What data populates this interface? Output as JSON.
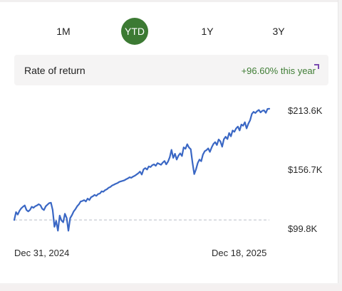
{
  "tabs": [
    {
      "label": "1M",
      "active": false
    },
    {
      "label": "YTD",
      "active": true
    },
    {
      "label": "1Y",
      "active": false
    },
    {
      "label": "3Y",
      "active": false
    }
  ],
  "rate_of_return": {
    "label": "Rate of return",
    "value": "+96.60% this year"
  },
  "colors": {
    "accent_green": "#3c7a33",
    "line": "#3a67c4",
    "baseline": "#b9bec8"
  },
  "chart_data": {
    "type": "line",
    "y_tick_labels": [
      "$213.6K",
      "$156.7K",
      "$99.8K"
    ],
    "y_ticks": [
      213600,
      156700,
      99800
    ],
    "x_tick_labels": [
      "Dec 31, 2024",
      "Dec 18, 2025"
    ],
    "ylim": [
      94000,
      222000
    ],
    "baseline": 108600,
    "series": [
      {
        "values": [
          108600,
          116200,
          113800,
          117500,
          119800,
          121400,
          122600,
          118200,
          116900,
          118300,
          121300,
          120400,
          121800,
          122600,
          123800,
          122700,
          119400,
          118200,
          121700,
          123300,
          124800,
          125200,
          118300,
          102000,
          107600,
          98200,
          112800,
          108200,
          106400,
          114600,
          110400,
          98200,
          110400,
          113200,
          116800,
          118900,
          121800,
          123600,
          126400,
          126900,
          127800,
          126400,
          129200,
          127800,
          130600,
          131400,
          132800,
          131800,
          133600,
          134100,
          136200,
          135800,
          137400,
          138200,
          139600,
          140400,
          141800,
          142600,
          143400,
          144100,
          145200,
          145800,
          146300,
          146800,
          147800,
          148600,
          149800,
          149200,
          150400,
          151200,
          152400,
          153600,
          155200,
          152400,
          157400,
          158600,
          157200,
          160200,
          159600,
          161400,
          162200,
          160800,
          163400,
          162600,
          161800,
          163800,
          165400,
          162200,
          164800,
          168900,
          176200,
          168400,
          172400,
          166800,
          170600,
          172800,
          170200,
          178600,
          177200,
          181600,
          178400,
          176800,
          164200,
          152800,
          157200,
          163400,
          166800,
          165200,
          171600,
          174800,
          175800,
          177600,
          174200,
          178600,
          181800,
          183600,
          180800,
          186200,
          184400,
          179200,
          186400,
          188800,
          186600,
          192400,
          189200,
          194800,
          193600,
          196800,
          198600,
          194800,
          200600,
          199400,
          202800,
          196800,
          201400,
          204600,
          210800,
          212800,
          211600,
          213400,
          214600,
          212200,
          213800,
          214200,
          211800,
          215600,
          215800
        ]
      }
    ]
  },
  "footer_strip": ""
}
